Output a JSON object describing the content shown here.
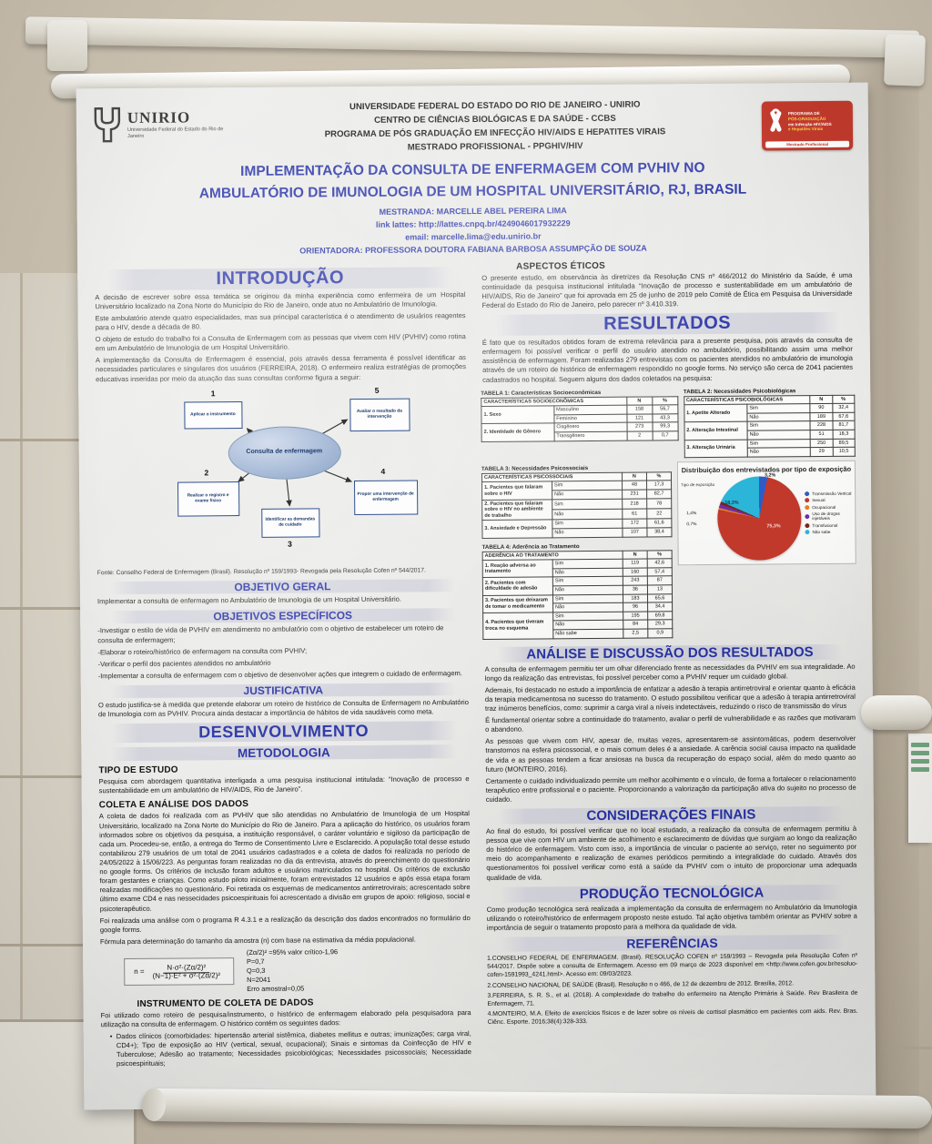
{
  "header": {
    "unirio_name": "UNIRIO",
    "unirio_sub": "Universidade Federal do Estado do Rio de Janeiro",
    "lines": [
      "UNIVERSIDADE FEDERAL DO ESTADO DO RIO DE JANEIRO - UNIRIO",
      "CENTRO DE CIÊNCIAS BIOLÓGICAS E DA SAÚDE - CCBS",
      "PROGRAMA DE PÓS GRADUAÇÃO EM INFECÇÃO HIV/AIDS E HEPATITES VIRAIS",
      "MESTRADO PROFISSIONAL - PPGHIV/HIV"
    ],
    "program_logo": {
      "l1": "PROGRAMA DE",
      "l2": "PÓS-GRADUAÇÃO",
      "l3": "em Infecção HIV/AIDS",
      "l4": "e Hepatites Virais",
      "badge": "Mestrado Profissional"
    }
  },
  "title": {
    "line1": "IMPLEMENTAÇÃO DA CONSULTA DE ENFERMAGEM COM PVHIV NO",
    "line2": "AMBULATÓRIO DE IMUNOLOGIA DE UM HOSPITAL UNIVERSITÁRIO, RJ, BRASIL"
  },
  "authors": {
    "mestranda": "MESTRANDA: MARCELLE ABEL PEREIRA LIMA",
    "lattes": "link lattes: http://lattes.cnpq.br/4249046017932229",
    "email": "email: marcelle.lima@edu.unirio.br",
    "orientadora": "ORIENTADORA: PROFESSORA DOUTORA FABIANA BARBOSA ASSUMPÇÃO DE SOUZA"
  },
  "left": {
    "intro": {
      "heading": "INTRODUÇÃO",
      "p1": "A decisão de escrever sobre essa temática se originou da minha experiência como enfermeira de um Hospital Universitário localizado na Zona Norte do Município do Rio de Janeiro, onde atuo no Ambulatório de Imunologia.",
      "p2": "Este ambulatório atende quatro especialidades, mas sua principal característica é o atendimento de usuários reagentes para o HIV, desde a década de 80.",
      "p3": "O objeto de estudo do trabalho foi a Consulta de Enfermagem com as  pessoas que vivem com HIV (PVHIV) como rotina em um Ambulatório de Imunologia de um Hospital Universitário.",
      "p4": "A implementação da Consulta de Enfermagem é essencial, pois através dessa ferramenta é possível identificar as necessidades particulares e singulares dos usuários (FERREIRA, 2018). O enfermeiro realiza estratégias de promoções educativas inseridas por meio da atuação das suas consultas conforme figura a seguir:"
    },
    "diagram": {
      "center": "Consulta de enfermagem",
      "nodes": [
        {
          "num": "1",
          "label": "Aplicar o instrumento"
        },
        {
          "num": "2",
          "label": "Realizar o registro e exame físico"
        },
        {
          "num": "3",
          "label": "Identificar as demandas de cuidado"
        },
        {
          "num": "4",
          "label": "Propor uma intervenção de enfermagem"
        },
        {
          "num": "5",
          "label": "Avaliar o resultado da intervenção"
        }
      ],
      "fonte": "Fonte: Conselho Federal de Enfermagem (Brasil). Resolução nº 159/1993- Revogada pela Resolução Cofen nº 544/2017."
    },
    "objetivo_geral": {
      "heading": "OBJETIVO GERAL",
      "text": "Implementar a consulta de enfermagem no Ambulatório de Imunologia de um Hospital Universitário."
    },
    "objetivos_especificos": {
      "heading": "OBJETIVOS ESPECÍFICOS",
      "items": [
        "-Investigar o estilo de vida de PVHIV em atendimento no ambulatório com o objetivo de estabelecer um roteiro de consulta de enfermagem;",
        "-Elaborar o roteiro/histórico de enfermagem na consulta com PVHIV;",
        "-Verificar o perfil dos pacientes atendidos no ambulatório",
        "-Implementar a consulta de enfermagem com o objetivo de desenvolver ações que integrem o cuidado de enfermagem."
      ]
    },
    "justificativa": {
      "heading": "JUSTIFICATIVA",
      "text": "O estudo justifica-se à medida que pretende elaborar um roteiro de  histórico de Consulta de Enfermagem no Ambulatório de Imunologia com as PVHIV. Procura ainda destacar a importância de hábitos de vida saudáveis como meta."
    },
    "desenvolvimento": {
      "heading": "DESENVOLVIMENTO",
      "sub": "METODOLOGIA"
    },
    "tipo_estudo": {
      "heading": "TIPO DE ESTUDO",
      "text": "Pesquisa com abordagem quantitativa interligada a uma pesquisa institucional intitulada: “Inovação de processo e sustentabilidade em um ambulatório de HIV/AIDS, Rio de Janeiro”."
    },
    "coleta": {
      "heading": "COLETA E ANÁLISE DOS DADOS",
      "p1": "A coleta de dados foi realizada com as PVHIV que são atendidas no Ambulatório de Imunologia de um Hospital Universitário, localizado na Zona Norte do Município do Rio de Janeiro. Para a aplicação do histórico, os usuários foram informados sobre os objetivos da pesquisa, a instituição responsável, o caráter voluntário e sigiloso da participação de cada um. Procedeu-se, então, a entrega do Termo de Consentimento Livre e Esclarecido. A população total desse estudo contabilizou 279 usuários de um total de 2041 usuários cadastrados e a coleta de dados foi realizada no período de 24/05/2022 à 15/06/223. As perguntas foram realizadas no dia da entrevista, através do preenchimento do questionário no google forms. Os critérios de inclusão foram adultos e usuários matriculados no hospital. Os critérios de exclusão foram gestantes e crianças. Como estudo piloto inicialmente, foram entrevistados 12 usuários e após essa etapa foram realizadas  modificações no questionário. Foi retirada os esquemas de medicamentos antirretrovirais; acrescentado sobre último exame CD4 e nas nessecidades psicoespirituais foi acrescentado a divisão em grupos de apoio: religioso, social e psicoterapêutico.",
      "p2": "Foi realizada uma análise com o programa R 4.3.1 e a realização da descrição dos dados encontrados no formulário do google forms.",
      "p3": "Fórmula para determinação do tamanho da amostra (n) com base na estimativa da média populacional."
    },
    "formula": {
      "lhs": "n =",
      "num": "N·σ²·(Zα/2)²",
      "den": "(N−1)·E² + σ²·(Zα/2)²",
      "side": [
        "(Zα/2)²  =95% valor crítico-1,96",
        "P=0,7",
        "Q=0,3",
        "N=2041",
        "Erro amostral=0,05"
      ]
    },
    "instrumento": {
      "heading": "INSTRUMENTO DE COLETA DE DADOS",
      "text": "Foi utilizado como roteiro de pesquisa/instrumento, o histórico de enfermagem elaborado pela pesquisadora para utilização na consulta de enfermagem. O histórico contém os seguintes dados:",
      "bullet": "Dados clínicos (comorbidades: hipertensão arterial sistêmica, diabetes mellitus e outras; imunizações; carga viral, CD4+); Tipo de exposição ao HIV (vertical, sexual, ocupacional); Sinais e sintomas da Coinfecção de HIV e Tuberculose; Adesão ao tratamento; Necessidades psicobiológicas; Necessidades psicossociais; Necessidade psicoespirituais;"
    }
  },
  "right": {
    "aspectos": {
      "heading": "ASPECTOS ÉTICOS",
      "text": "O presente estudo, em observância às diretrizes da Resolução CNS nº 466/2012 do Ministério da Saúde, é uma continuidade da pesquisa institucional intitulada “Inovação de processo e sustentabilidade em um ambulatório de HIV/AIDS, Rio de Janeiro” que foi aprovada em 25 de junho de 2019 pelo Comitê de Ética em Pesquisa da Universidade Federal do Estado do Rio de Janeiro, pelo parecer nº 3.410.319."
    },
    "resultados": {
      "heading": "RESULTADOS",
      "text": "É fato que os resultados obtidos foram de extrema relevância para a presente pesquisa, pois através da consulta de enfermagem foi possível verificar o perfil do usuário atendido no ambulatório, possibilitando assim uma melhor assistência de enfermagem. Foram realizadas 279 entrevistas com os pacientes atendidos no ambulatório de imunologia através de um roteiro de histórico de enfermagem respondido no google forms. No serviço são cerca de 2041 pacientes cadastrados no hospital. Seguem alguns dos dados coletados na pesquisa:"
    },
    "tables": {
      "cap1": "TABELA 1: Características Socioeconômicas",
      "cap2": "TABELA 2: Necessidades Psicobiológicas",
      "cap3": "TABELA 3: Necessidades Psicossociais",
      "cap4": "TABELA 4: Aderência ao Tratamento",
      "t1": {
        "headers": [
          "CARACTERÍSTICAS SOCIOECONÔMICAS",
          "N",
          "%"
        ],
        "rows": [
          {
            "g": "1. Sexo",
            "span": 2,
            "opt": "Masculino",
            "n": "158",
            "p": "56,7"
          },
          {
            "opt": "Feminino",
            "n": "121",
            "p": "43,3"
          },
          {
            "g": "2. Identidade de Gênero",
            "span": 2,
            "opt": "Cisgênero",
            "n": "273",
            "p": "99,3"
          },
          {
            "opt": "Transgênero",
            "n": "2",
            "p": "0,7"
          }
        ]
      },
      "t2": {
        "headers": [
          "CARACTERÍSTICAS PSICOBIOLÓGICAS",
          "N",
          "%"
        ],
        "rows": [
          {
            "g": "1. Apetite Alterado",
            "span": 2,
            "opt": "Sim",
            "n": "90",
            "p": "32,4"
          },
          {
            "opt": "Não",
            "n": "189",
            "p": "67,6"
          },
          {
            "g": "2. Alteração Intestinal",
            "span": 2,
            "opt": "Sim",
            "n": "228",
            "p": "81,7"
          },
          {
            "opt": "Não",
            "n": "51",
            "p": "18,3"
          },
          {
            "g": "3. Alteração Urinária",
            "span": 2,
            "opt": "Sim",
            "n": "250",
            "p": "89,5"
          },
          {
            "opt": "Não",
            "n": "29",
            "p": "10,5"
          }
        ]
      },
      "t3": {
        "headers": [
          "CARACTERÍSTICAS PSICOSSOCIAIS",
          "N",
          "%"
        ],
        "rows": [
          {
            "g": "1. Pacientes que falaram sobre o HIV",
            "span": 2,
            "opt": "Sim",
            "n": "48",
            "p": "17,3"
          },
          {
            "opt": "Não",
            "n": "231",
            "p": "82,7"
          },
          {
            "g": "2. Pacientes que falaram sobre o HIV no ambiente de trabalho",
            "span": 2,
            "opt": "Sim",
            "n": "218",
            "p": "78"
          },
          {
            "opt": "Não",
            "n": "61",
            "p": "22"
          },
          {
            "g": "3. Ansiedade e Depressão",
            "span": 2,
            "opt": "Sim",
            "n": "172",
            "p": "61,6"
          },
          {
            "opt": "Não",
            "n": "107",
            "p": "38,4"
          }
        ]
      },
      "t4": {
        "headers": [
          "ADERÊNCIA AO TRATAMENTO",
          "N",
          "%"
        ],
        "rows": [
          {
            "g": "1. Reação adversa ao tratamento",
            "span": 2,
            "opt": "Sim",
            "n": "119",
            "p": "42,6"
          },
          {
            "opt": "Não",
            "n": "160",
            "p": "57,4"
          },
          {
            "g": "2. Pacientes com dificuldade de adesão",
            "span": 2,
            "opt": "Sim",
            "n": "243",
            "p": "87"
          },
          {
            "opt": "Não",
            "n": "36",
            "p": "13"
          },
          {
            "g": "3. Pacientes que deixaram de tomar o medicamento",
            "span": 2,
            "opt": "Sim",
            "n": "183",
            "p": "65,6"
          },
          {
            "opt": "Não",
            "n": "96",
            "p": "34,4"
          },
          {
            "g": "4. Pacientes que tiveram troca no esquema",
            "span": 3,
            "opt": "Sim",
            "n": "195",
            "p": "69,8"
          },
          {
            "opt": "Não",
            "n": "84",
            "p": "29,3"
          },
          {
            "opt": "Não sabe",
            "n": "2,5",
            "p": "0,9"
          }
        ]
      }
    },
    "analise": {
      "heading": "ANÁLISE E DISCUSSÃO DOS RESULTADOS",
      "p1": "A consulta de enfermagem permitiu ter um olhar diferenciado frente as necessidades da PVHIV em sua integralidade. Ao longo da realização das entrevistas, foi possível perceber como a PVHIV requer um cuidado global.",
      "p2": "Ademais, foi destacado no estudo a importância de enfatizar a adesão à terapia antirretroviral e orientar quanto à eficácia da terapia medicamentosa no sucesso do tratamento. O estudo possibilitou verificar que a adesão à terapia antirretroviral traz inúmeros benefícios, como: suprimir a carga viral a níveis indetectáveis, reduzindo o risco de transmissão do vírus",
      "p3": "É fundamental orientar sobre a continuidade do tratamento, avaliar o perfil de vulnerabilidade e as razões que motivaram o abandono.",
      "p4": "As pessoas que vivem com HIV, apesar de, muitas vezes, apresentarem-se assintomáticas, podem desenvolver transtornos na esfera psicossocial, e o mais comum deles é a ansiedade. A carência social causa impacto na qualidade de vida e as pessoas tendem a ficar ansiosas na busca da recuperação do espaço social, além do medo quanto ao futuro (MONTEIRO, 2016).",
      "p5": "Certamente o cuidado individualizado permite um melhor acolhimento e o vínculo, de forma a fortalecer o relacionamento terapêutico entre profissional e o paciente. Proporcionando a valorização da participação ativa do sujeito no processo de cuidado."
    },
    "consideracoes": {
      "heading": "CONSIDERAÇÕES FINAIS",
      "text": "Ao final do estudo, foi possível verificar que no local estudado, a realização da consulta de enfermagem permitiu à pessoa que vive com HIV um ambiente de acolhimento e esclarecimento de dúvidas que surgiam ao longo da realização do histórico de enfermagem. Visto com isso, a importância de vincular o paciente ao serviço, reter no seguimento por meio do acompanhamento e realização de exames periódicos permitindo a integralidade do cuidado. Através dos questionamentos foi possível verificar como está a saúde da PVHIV com o intuito de proporcionar uma adequada qualidade de vida."
    },
    "producao": {
      "heading": "PRODUÇÃO TECNOLÓGICA",
      "text": "Como produção tecnológica será realizada a implementação da consulta de enfermagem no Ambulatório da Imunologia utilizando o roteiro/histórico de enfermagem proposto neste estudo. Tal ação objetiva também orientar as PVHIV sobre a importância de seguir o tratamento proposto para a melhora da qualidade de vida."
    },
    "referencias": {
      "heading": "REFERÊNCIAS",
      "items": [
        "1.CONSELHO FEDERAL DE ENFERMAGEM. (Brasil). RESOLUÇÃO COFEN nº 159/1993 – Revogada pela Resolução Cofen nº 544/2017. Dispõe sobre a consulta de Enfermagem. Acesso em 09 março de 2023 disponível em <http://www.cofen.gov.br/resoluo-cofen-1591993_4241.html>. Acesso em: 09/03/2023.",
        "2.CONSELHO NACIONAL DE SAÚDE (Brasil). Resolução n o 466, de 12 de dezembro de 2012. Brasília, 2012.",
        "3.FERREIRA, S. R. S., et al. (2018). A complexidade do trabalho do enfermeiro na Atenção Primária à Saúde. Rev Brasileira de Enfermagem, 71.",
        "4.MONTEIRO, M.A. Efeito de exercícios físicos e de lazer sobre os níveis de cortisol plasmático em pacientes com aids. Rev. Bras. Ciênc. Esporte. 2016;38(4):328-333."
      ]
    }
  },
  "chart_data": {
    "type": "pie",
    "title": "Distribuição dos entrevistados por tipo de exposição",
    "note": "Tipo de exposição",
    "slices": [
      {
        "label": "Transmissão Vertical",
        "value": 3.2,
        "color": "#2e5bc7"
      },
      {
        "label": "Sexual",
        "value": 75.3,
        "color": "#c0392b"
      },
      {
        "label": "Ocupacional",
        "value": 0.7,
        "color": "#e67e22"
      },
      {
        "label": "Uso de drogas injetáveis",
        "value": 1.4,
        "color": "#6f2da8"
      },
      {
        "label": "Transfusional",
        "value": 1.1,
        "color": "#7b241c"
      },
      {
        "label": "Não sabe",
        "value": 18.3,
        "color": "#2bb5d8"
      }
    ],
    "legend": [
      {
        "label": "Transmissão Vertical",
        "color": "#2e5bc7"
      },
      {
        "label": "Sexual",
        "color": "#c0392b"
      },
      {
        "label": "Ocupacional",
        "color": "#e67e22"
      },
      {
        "label": "Uso de drogas injetáveis",
        "color": "#6f2da8"
      },
      {
        "label": "Transfusional",
        "color": "#7b241c"
      },
      {
        "label": "Não sabe",
        "color": "#2bb5d8"
      }
    ],
    "point_labels": {
      "vertical": "3,2%",
      "sexual": "75,3%",
      "nao_sabe": "18,3%",
      "left1": "1,4%",
      "left2": "0,7%"
    },
    "legend_position": "right"
  }
}
